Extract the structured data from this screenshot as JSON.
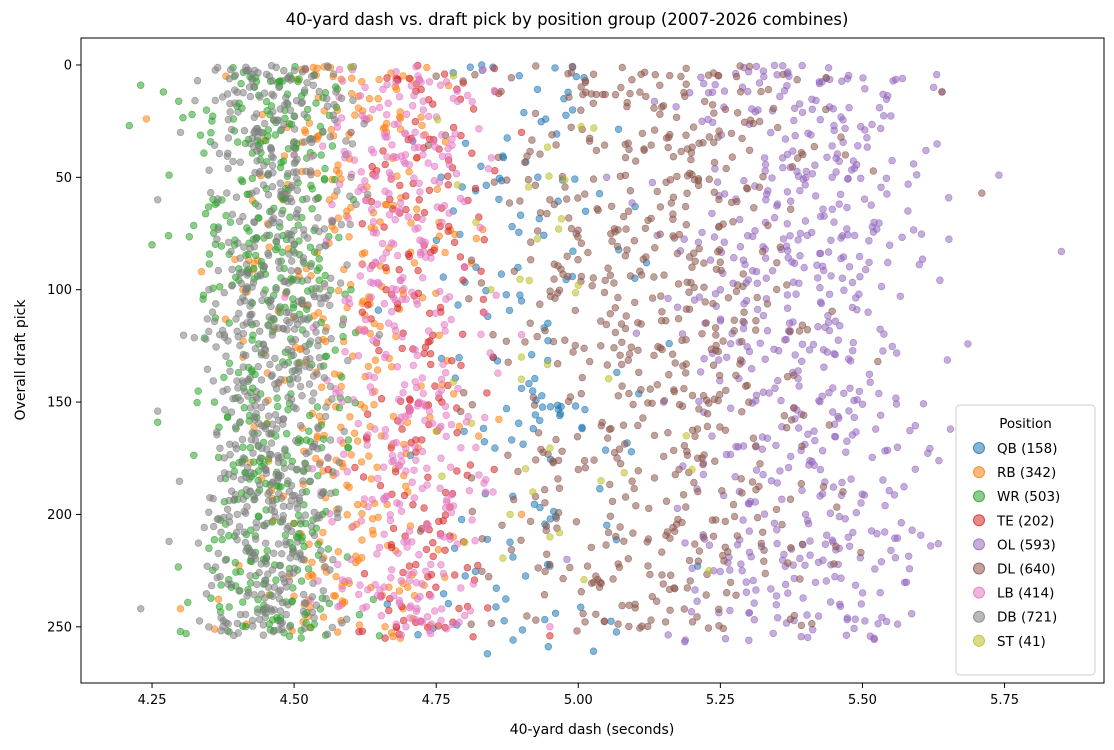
{
  "chart_data": {
    "type": "scatter",
    "title": "40-yard dash vs. draft pick by position group (2007-2026 combines)",
    "xlabel": "40-yard dash (seconds)",
    "ylabel": "Overall draft pick",
    "xlim": [
      4.125,
      5.925
    ],
    "ylim": [
      275,
      -12
    ],
    "y_inverted": true,
    "x_ticks": [
      4.25,
      4.5,
      4.75,
      5.0,
      5.25,
      5.5,
      5.75
    ],
    "x_tick_labels": [
      "4.25",
      "4.50",
      "4.75",
      "5.00",
      "5.25",
      "5.50",
      "5.75"
    ],
    "y_ticks": [
      0,
      50,
      100,
      150,
      200,
      250
    ],
    "y_tick_labels": [
      "0",
      "50",
      "100",
      "150",
      "200",
      "250"
    ],
    "grid": false,
    "legend": {
      "title": "Position",
      "placement": "lower-right"
    },
    "series": [
      {
        "name": "QB (158)",
        "color": "#1f77b4",
        "count": 158,
        "sample_points": [
          [
            4.83,
            0
          ],
          [
            4.81,
            1
          ],
          [
            4.85,
            1
          ],
          [
            4.6,
            1
          ],
          [
            4.99,
            1
          ],
          [
            4.78,
            65
          ],
          [
            4.82,
            90
          ],
          [
            4.9,
            105
          ],
          [
            4.84,
            262
          ],
          [
            4.95,
            223
          ],
          [
            5.12,
            88
          ],
          [
            5.16,
            124
          ],
          [
            4.96,
            244
          ],
          [
            4.97,
            152
          ],
          [
            5.21,
            223
          ],
          [
            4.56,
            1
          ],
          [
            5.1,
            63
          ],
          [
            4.99,
            20
          ]
        ],
        "x_range": [
          4.55,
          5.25
        ],
        "y_range": [
          0,
          262
        ]
      },
      {
        "name": "RB (342)",
        "color": "#ff7f0e",
        "count": 342,
        "sample_points": [
          [
            4.24,
            24
          ],
          [
            4.3,
            242
          ],
          [
            4.36,
            251
          ],
          [
            4.38,
            5
          ],
          [
            4.52,
            30
          ],
          [
            4.62,
            106
          ],
          [
            4.48,
            60
          ],
          [
            4.7,
            190
          ],
          [
            4.56,
            150
          ],
          [
            4.78,
            210
          ],
          [
            4.41,
            130
          ],
          [
            4.66,
            250
          ],
          [
            4.9,
            200
          ]
        ],
        "x_range": [
          4.24,
          4.95
        ],
        "y_range": [
          0,
          256
        ]
      },
      {
        "name": "WR (503)",
        "color": "#2ca02c",
        "count": 503,
        "sample_points": [
          [
            4.21,
            27
          ],
          [
            4.23,
            9
          ],
          [
            4.27,
            12
          ],
          [
            4.28,
            49
          ],
          [
            4.26,
            159
          ],
          [
            4.25,
            80
          ],
          [
            4.31,
            253
          ],
          [
            4.35,
            215
          ],
          [
            4.42,
            140
          ],
          [
            4.5,
            40
          ],
          [
            4.55,
            200
          ],
          [
            4.6,
            100
          ],
          [
            4.65,
            254
          ]
        ],
        "x_range": [
          4.21,
          4.72
        ],
        "y_range": [
          0,
          255
        ]
      },
      {
        "name": "TE (202)",
        "color": "#d62728",
        "count": 202,
        "sample_points": [
          [
            4.52,
            2
          ],
          [
            4.56,
            180
          ],
          [
            4.62,
            110
          ],
          [
            4.68,
            250
          ],
          [
            4.72,
            60
          ],
          [
            4.76,
            150
          ],
          [
            4.8,
            90
          ],
          [
            4.85,
            130
          ],
          [
            4.9,
            30
          ],
          [
            4.95,
            254
          ],
          [
            4.66,
            255
          ]
        ],
        "x_range": [
          4.5,
          4.97
        ],
        "y_range": [
          0,
          256
        ]
      },
      {
        "name": "OL (593)",
        "color": "#9467bd",
        "count": 593,
        "sample_points": [
          [
            4.98,
            220
          ],
          [
            5.05,
            50
          ],
          [
            5.15,
            150
          ],
          [
            5.25,
            100
          ],
          [
            5.33,
            60
          ],
          [
            5.4,
            200
          ],
          [
            5.45,
            27
          ],
          [
            5.5,
            151
          ],
          [
            5.53,
            19
          ],
          [
            5.55,
            216
          ],
          [
            5.58,
            65
          ],
          [
            5.59,
            44
          ],
          [
            5.62,
            214
          ],
          [
            5.64,
            12
          ],
          [
            5.85,
            83
          ],
          [
            5.74,
            49
          ],
          [
            5.51,
            110
          ],
          [
            5.46,
            240
          ],
          [
            5.3,
            256
          ]
        ],
        "x_range": [
          4.95,
          5.85
        ],
        "y_range": [
          0,
          257
        ]
      },
      {
        "name": "DL (640)",
        "color": "#8c564b",
        "count": 640,
        "sample_points": [
          [
            4.6,
            30
          ],
          [
            4.75,
            5
          ],
          [
            4.85,
            120
          ],
          [
            4.95,
            60
          ],
          [
            5.0,
            180
          ],
          [
            5.1,
            240
          ],
          [
            5.2,
            90
          ],
          [
            5.3,
            150
          ],
          [
            5.38,
            245
          ],
          [
            5.45,
            222
          ],
          [
            5.47,
            40
          ],
          [
            5.71,
            57
          ],
          [
            5.64,
            12
          ]
        ],
        "x_range": [
          4.55,
          5.71
        ],
        "y_range": [
          0,
          252
        ]
      },
      {
        "name": "LB (414)",
        "color": "#e377c2",
        "count": 414,
        "sample_points": [
          [
            4.45,
            180
          ],
          [
            4.5,
            40
          ],
          [
            4.6,
            220
          ],
          [
            4.68,
            100
          ],
          [
            4.72,
            150
          ],
          [
            4.76,
            70
          ],
          [
            4.8,
            245
          ],
          [
            4.85,
            190
          ],
          [
            4.9,
            120
          ],
          [
            4.95,
            250
          ],
          [
            4.58,
            2
          ]
        ],
        "x_range": [
          4.42,
          4.98
        ],
        "y_range": [
          0,
          254
        ]
      },
      {
        "name": "DB (721)",
        "color": "#7f7f7f",
        "count": 721,
        "sample_points": [
          [
            4.23,
            242
          ],
          [
            4.26,
            154
          ],
          [
            4.26,
            60
          ],
          [
            4.28,
            212
          ],
          [
            4.3,
            30
          ],
          [
            4.33,
            7
          ],
          [
            4.35,
            100
          ],
          [
            4.4,
            200
          ],
          [
            4.45,
            150
          ],
          [
            4.5,
            80
          ],
          [
            4.55,
            220
          ],
          [
            4.6,
            50
          ],
          [
            4.65,
            120
          ]
        ],
        "x_range": [
          4.23,
          4.7
        ],
        "y_range": [
          0,
          254
        ]
      },
      {
        "name": "ST (41)",
        "color": "#bcbd22",
        "count": 41,
        "sample_points": [
          [
            4.82,
            70
          ],
          [
            4.78,
            141
          ],
          [
            4.75,
            163
          ],
          [
            4.76,
            183
          ],
          [
            4.92,
            190
          ],
          [
            4.95,
            210
          ],
          [
            5.0,
            98
          ],
          [
            5.04,
            185
          ],
          [
            5.01,
            229
          ],
          [
            5.19,
            165
          ],
          [
            5.2,
            180
          ],
          [
            5.23,
            225
          ],
          [
            4.6,
            1
          ],
          [
            4.9,
            130
          ],
          [
            4.88,
            200
          ]
        ],
        "x_range": [
          4.55,
          5.25
        ],
        "y_range": [
          0,
          232
        ]
      }
    ]
  }
}
